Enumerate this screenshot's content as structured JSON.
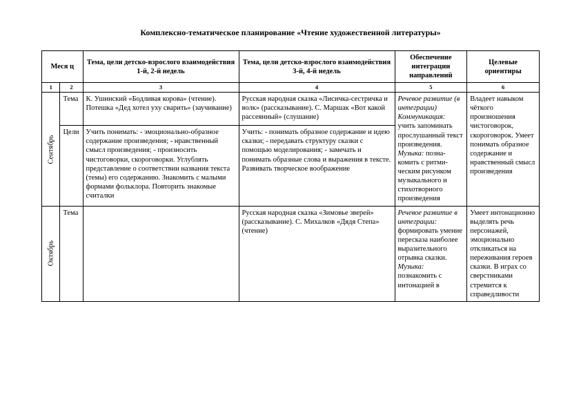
{
  "title": "Комплексно-тематическое планирование «Чтение художественной литературы»",
  "headers": {
    "month": "Меся\nц",
    "weeks12": "Тема, цели детско-взрослого взаимодействия 1-й, 2-й недель",
    "weeks34": "Тема, цели детско-взрослого взаимодействия 3-й, 4-й недель",
    "integration": "Обеспечение интеграции направлений",
    "targets": "Целевые ориентиры"
  },
  "numRow": [
    "1",
    "2",
    "3",
    "4",
    "5",
    "6"
  ],
  "rowLabels": {
    "tema": "Тема",
    "celi": "Цели"
  },
  "sept": {
    "month": "Сентябрь",
    "tema12": "К. Ушинский «Бодливая корова» (чтение). Потешка «Дед хотел уху сварить» (заучива­ние)",
    "tema34": "Русская народная сказка «Лисичка-сестричка и волк» (рассказывание). С. Маршак «Вот какой рассеянный» (слушание)",
    "celi12": "Учить понимать: - эмоционально-образное содержание произведения; - нравственный смысл произведения; - произносить чистоговорки, скороговорки. Углублять представление о соответствии названия текста (темы) его содержанию. Знакомить с малыми формами фольклора. Повторить знакомые считалки",
    "celi34": "Учить:\n- понимать образное содержание и идею сказки;\n- передавать структуру сказки с помощью моделирования;\n- замечать и понимать образные слова и вы­ражения в тексте. Развивать творческое воображение",
    "integ_prefix": "Речевое развитие (в интеграции) Коммуникация:",
    "integ_rest": " учить запоминать прослушанный текст произведения. ",
    "integ_music_label": "Музыка:",
    "integ_music": " позна­комить с ритми­ческим рисунком музыкального и стихотворного произведения",
    "target": "Владеет навыком чёткого произношения чистоговорок, скороговорок. Умеет понимать образное содержание и нравственный смысл произве­дения"
  },
  "oct": {
    "month": "Октябрь",
    "tema34": "Русская народная сказка «Зимовье зверей» (рассказывание). С. Михалков «Дядя Степа» (чтение)",
    "integ_prefix": "Речевое развитие в интеграции:",
    "integ_rest": " формировать умение пересказа наиболее выразительного отрывка сказки. ",
    "integ_music_label": "Музыка:",
    "integ_music": " познакомить с интонацией в",
    "target": "Умеет интонационно выделять речь персонажей, эмоционально откликаться на переживания героев сказки. В играх со сверстниками стремится к справедливости"
  },
  "style": {
    "background_color": "#ffffff",
    "text_color": "#000000",
    "border_color": "#000000",
    "font_family": "Times New Roman",
    "base_font_size_pt": 10.5,
    "title_font_size_pt": 12,
    "numrow_font_size_pt": 8.5
  }
}
